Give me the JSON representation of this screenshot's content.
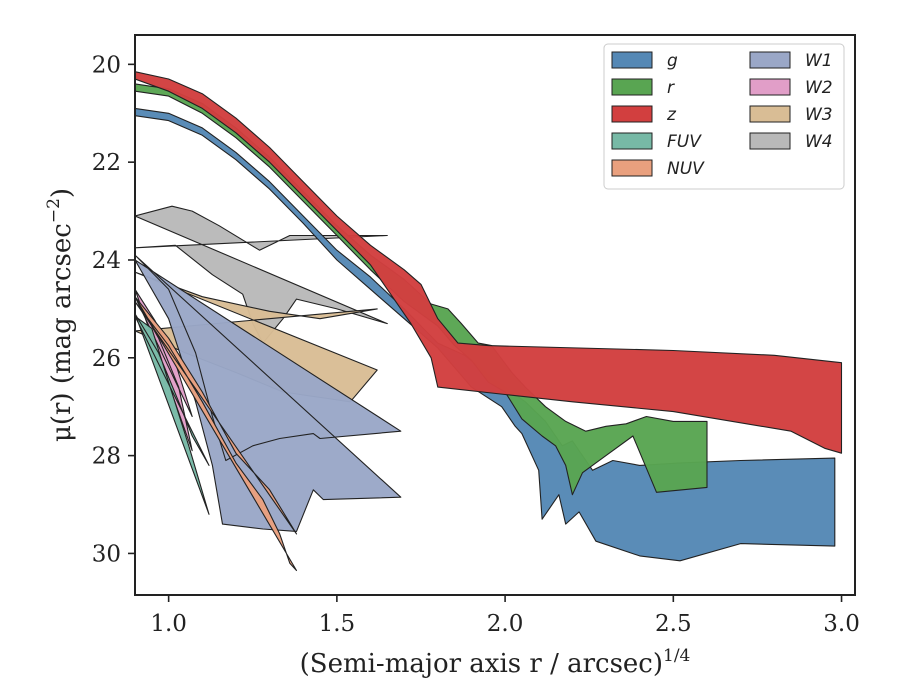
{
  "chart_data": {
    "type": "area",
    "xlabel": "(Semi-major axis r / arcsec)",
    "xlabel_superscript": "1/4",
    "ylabel": "μ(r) (mag arcsec",
    "ylabel_superscript": "−2",
    "ylabel_suffix": ")",
    "xlim": [
      0.9,
      3.04
    ],
    "ylim": [
      30.85,
      19.4
    ],
    "y_inverted": true,
    "grid": false,
    "legend_position": "top-right",
    "legend_columns": 2,
    "x_ticks": [
      1.0,
      1.5,
      2.0,
      2.5,
      3.0
    ],
    "x_tick_labels": [
      "1.0",
      "1.5",
      "2.0",
      "2.5",
      "3.0"
    ],
    "y_ticks": [
      20,
      22,
      24,
      26,
      28,
      30
    ],
    "y_tick_labels": [
      "20",
      "22",
      "24",
      "26",
      "28",
      "30"
    ],
    "series": [
      {
        "name": "W4",
        "color": "#b9b9b9",
        "upper": [
          [
            0.9,
            23.1
          ],
          [
            1.01,
            22.9
          ],
          [
            1.07,
            23.0
          ],
          [
            1.15,
            23.3
          ],
          [
            1.27,
            23.8
          ],
          [
            1.36,
            23.5
          ],
          [
            1.65,
            23.5
          ]
        ],
        "lower": [
          [
            0.9,
            23.75
          ],
          [
            1.02,
            23.7
          ],
          [
            1.13,
            24.3
          ],
          [
            1.22,
            24.7
          ],
          [
            1.25,
            25.3
          ],
          [
            1.28,
            25.7
          ],
          [
            1.34,
            25.2
          ],
          [
            1.38,
            24.8
          ],
          [
            1.5,
            25.0
          ],
          [
            1.65,
            25.3
          ]
        ]
      },
      {
        "name": "W3",
        "color": "#d9bd95",
        "upper": [
          [
            0.9,
            24.25
          ],
          [
            1.1,
            24.75
          ],
          [
            1.3,
            25.05
          ],
          [
            1.45,
            25.2
          ],
          [
            1.62,
            25.0
          ]
        ],
        "lower": [
          [
            0.9,
            25.45
          ],
          [
            1.05,
            25.9
          ],
          [
            1.2,
            26.3
          ],
          [
            1.34,
            26.7
          ],
          [
            1.54,
            26.9
          ],
          [
            1.62,
            26.25
          ]
        ]
      },
      {
        "name": "W1",
        "color": "#9aa7c7",
        "upper": [
          [
            0.9,
            23.9
          ],
          [
            1.0,
            24.6
          ],
          [
            1.08,
            25.9
          ],
          [
            1.13,
            27.2
          ],
          [
            1.17,
            28.1
          ],
          [
            1.25,
            27.8
          ],
          [
            1.33,
            27.65
          ],
          [
            1.43,
            27.55
          ],
          [
            1.45,
            27.65
          ],
          [
            1.69,
            27.5
          ]
        ],
        "lower": [
          [
            0.9,
            24.0
          ],
          [
            1.0,
            25.2
          ],
          [
            1.08,
            26.9
          ],
          [
            1.13,
            28.2
          ],
          [
            1.16,
            29.4
          ],
          [
            1.28,
            29.5
          ],
          [
            1.38,
            29.55
          ],
          [
            1.43,
            28.7
          ],
          [
            1.46,
            28.9
          ],
          [
            1.69,
            28.85
          ]
        ]
      },
      {
        "name": "W2",
        "color": "#e19ec8",
        "upper": [
          [
            0.9,
            24.6
          ],
          [
            0.96,
            25.25
          ],
          [
            1.02,
            26.1
          ],
          [
            1.07,
            27.2
          ]
        ],
        "lower": [
          [
            0.9,
            24.75
          ],
          [
            0.97,
            25.6
          ],
          [
            1.03,
            26.6
          ],
          [
            1.07,
            27.9
          ]
        ]
      },
      {
        "name": "FUV",
        "color": "#77b9a6",
        "upper": [
          [
            0.9,
            25.1
          ],
          [
            0.97,
            25.9
          ],
          [
            1.03,
            26.9
          ],
          [
            1.07,
            27.6
          ],
          [
            1.12,
            28.2
          ]
        ],
        "lower": [
          [
            0.9,
            25.15
          ],
          [
            0.95,
            25.4
          ],
          [
            1.0,
            26.5
          ],
          [
            1.06,
            27.8
          ],
          [
            1.12,
            29.2
          ]
        ]
      },
      {
        "name": "NUV",
        "color": "#e9a07e",
        "upper": [
          [
            0.9,
            24.75
          ],
          [
            1.0,
            25.6
          ],
          [
            1.1,
            26.7
          ],
          [
            1.2,
            27.95
          ],
          [
            1.3,
            28.7
          ],
          [
            1.38,
            29.6
          ]
        ],
        "lower": [
          [
            0.9,
            24.85
          ],
          [
            1.0,
            25.75
          ],
          [
            1.1,
            26.9
          ],
          [
            1.2,
            28.15
          ],
          [
            1.28,
            28.9
          ],
          [
            1.33,
            29.6
          ],
          [
            1.36,
            30.2
          ],
          [
            1.38,
            30.35
          ]
        ]
      },
      {
        "name": "g",
        "color": "#5588b5",
        "upper": [
          [
            0.9,
            20.9
          ],
          [
            1.0,
            21.0
          ],
          [
            1.1,
            21.3
          ],
          [
            1.2,
            21.8
          ],
          [
            1.3,
            22.4
          ],
          [
            1.4,
            23.1
          ],
          [
            1.5,
            23.8
          ],
          [
            1.6,
            24.35
          ],
          [
            1.7,
            25.0
          ],
          [
            1.8,
            25.7
          ],
          [
            1.88,
            25.95
          ],
          [
            1.98,
            26.5
          ],
          [
            2.06,
            26.9
          ],
          [
            2.12,
            27.3
          ],
          [
            2.17,
            27.8
          ],
          [
            2.2,
            27.7
          ],
          [
            2.26,
            28.3
          ],
          [
            2.32,
            28.1
          ],
          [
            2.4,
            28.2
          ],
          [
            2.52,
            28.15
          ],
          [
            2.7,
            28.1
          ],
          [
            2.98,
            28.05
          ]
        ],
        "lower": [
          [
            2.98,
            29.85
          ],
          [
            2.7,
            29.8
          ],
          [
            2.52,
            30.15
          ],
          [
            2.4,
            30.05
          ],
          [
            2.27,
            29.75
          ],
          [
            2.22,
            29.15
          ],
          [
            2.18,
            29.4
          ],
          [
            2.16,
            28.8
          ],
          [
            2.11,
            29.3
          ],
          [
            2.1,
            28.3
          ],
          [
            2.05,
            27.55
          ],
          [
            2.03,
            27.4
          ],
          [
            1.99,
            27.0
          ],
          [
            1.9,
            26.6
          ],
          [
            1.8,
            25.8
          ],
          [
            1.7,
            25.2
          ],
          [
            1.6,
            24.6
          ],
          [
            1.5,
            24.0
          ],
          [
            1.4,
            23.25
          ],
          [
            1.3,
            22.55
          ],
          [
            1.2,
            21.95
          ],
          [
            1.1,
            21.45
          ],
          [
            1.0,
            21.15
          ],
          [
            0.9,
            21.05
          ]
        ]
      },
      {
        "name": "r",
        "color": "#59a552",
        "upper": [
          [
            0.9,
            20.4
          ],
          [
            1.0,
            20.5
          ],
          [
            1.1,
            20.8
          ],
          [
            1.2,
            21.3
          ],
          [
            1.3,
            21.9
          ],
          [
            1.4,
            22.6
          ],
          [
            1.5,
            23.3
          ],
          [
            1.6,
            23.9
          ],
          [
            1.7,
            24.4
          ],
          [
            1.78,
            24.9
          ],
          [
            1.83,
            25.0
          ],
          [
            1.87,
            25.3
          ],
          [
            1.92,
            25.7
          ],
          [
            1.96,
            25.75
          ],
          [
            2.02,
            26.3
          ],
          [
            2.06,
            26.6
          ],
          [
            2.12,
            27.0
          ],
          [
            2.18,
            27.3
          ],
          [
            2.24,
            27.5
          ],
          [
            2.3,
            27.4
          ],
          [
            2.36,
            27.35
          ],
          [
            2.42,
            27.2
          ],
          [
            2.5,
            27.3
          ],
          [
            2.6,
            27.3
          ]
        ],
        "lower": [
          [
            2.6,
            28.65
          ],
          [
            2.45,
            28.75
          ],
          [
            2.38,
            27.6
          ],
          [
            2.3,
            28.0
          ],
          [
            2.23,
            28.35
          ],
          [
            2.2,
            28.8
          ],
          [
            2.18,
            28.2
          ],
          [
            2.15,
            27.8
          ],
          [
            2.11,
            27.6
          ],
          [
            2.05,
            27.25
          ],
          [
            2.0,
            26.7
          ],
          [
            1.95,
            26.5
          ],
          [
            1.9,
            26.05
          ],
          [
            1.85,
            25.75
          ],
          [
            1.8,
            25.35
          ],
          [
            1.7,
            24.85
          ],
          [
            1.6,
            24.2
          ],
          [
            1.5,
            23.5
          ],
          [
            1.4,
            22.8
          ],
          [
            1.3,
            22.1
          ],
          [
            1.2,
            21.5
          ],
          [
            1.1,
            21.0
          ],
          [
            1.0,
            20.65
          ],
          [
            0.9,
            20.55
          ]
        ]
      },
      {
        "name": "z",
        "color": "#d23f3f",
        "upper": [
          [
            0.9,
            20.15
          ],
          [
            1.0,
            20.3
          ],
          [
            1.1,
            20.6
          ],
          [
            1.2,
            21.1
          ],
          [
            1.3,
            21.7
          ],
          [
            1.4,
            22.4
          ],
          [
            1.5,
            23.1
          ],
          [
            1.6,
            23.7
          ],
          [
            1.7,
            24.2
          ],
          [
            1.75,
            24.5
          ],
          [
            1.8,
            25.2
          ],
          [
            1.86,
            25.7
          ],
          [
            1.95,
            25.75
          ],
          [
            2.5,
            25.85
          ],
          [
            2.8,
            25.95
          ],
          [
            3.0,
            26.1
          ]
        ],
        "lower": [
          [
            3.0,
            27.95
          ],
          [
            2.95,
            27.85
          ],
          [
            2.85,
            27.5
          ],
          [
            2.5,
            27.1
          ],
          [
            2.2,
            26.9
          ],
          [
            2.0,
            26.75
          ],
          [
            1.8,
            26.6
          ],
          [
            1.78,
            26.0
          ],
          [
            1.72,
            25.3
          ],
          [
            1.65,
            24.6
          ],
          [
            1.6,
            24.1
          ],
          [
            1.5,
            23.4
          ],
          [
            1.4,
            22.7
          ],
          [
            1.3,
            22.0
          ],
          [
            1.2,
            21.4
          ],
          [
            1.1,
            20.9
          ],
          [
            1.0,
            20.55
          ],
          [
            0.9,
            20.3
          ]
        ]
      }
    ],
    "legend": [
      "g",
      "r",
      "z",
      "FUV",
      "NUV",
      "W1",
      "W2",
      "W3",
      "W4"
    ]
  }
}
